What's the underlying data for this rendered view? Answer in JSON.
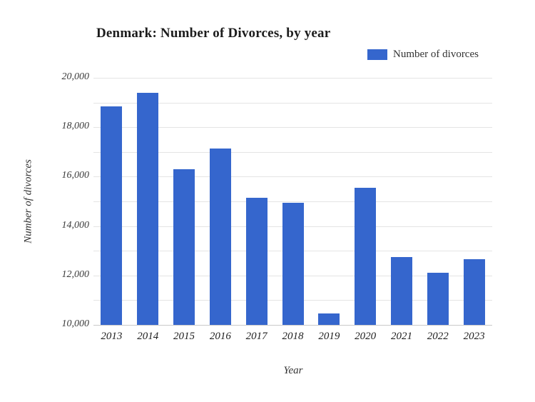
{
  "chart": {
    "title": "Denmark: Number of Divorces, by year",
    "legend": {
      "label": "Number of divorces"
    },
    "x_axis_title": "Year",
    "y_axis_title": "Number of divorces"
  },
  "chart_data": {
    "type": "bar",
    "title": "Denmark: Number of Divorces, by year",
    "xlabel": "Year",
    "ylabel": "Number of divorces",
    "categories": [
      "2013",
      "2014",
      "2015",
      "2016",
      "2017",
      "2018",
      "2019",
      "2020",
      "2021",
      "2022",
      "2023"
    ],
    "series": [
      {
        "name": "Number of divorces",
        "values": [
          18850,
          19400,
          16300,
          17150,
          15150,
          14950,
          10450,
          15550,
          12750,
          12100,
          12650
        ]
      }
    ],
    "ylim": [
      10000,
      20000
    ],
    "y_grid_interval": 1000,
    "y_label_interval": 2000,
    "y_tick_labels_shown": [
      "10,000",
      "12,000",
      "14,000",
      "16,000",
      "18,000",
      "20,000"
    ],
    "grid": true,
    "legend_position": "top-right",
    "colors": {
      "bar": "#3566cd",
      "gridline": "#e4e4e4",
      "baseline": "#c9c9c9"
    }
  }
}
